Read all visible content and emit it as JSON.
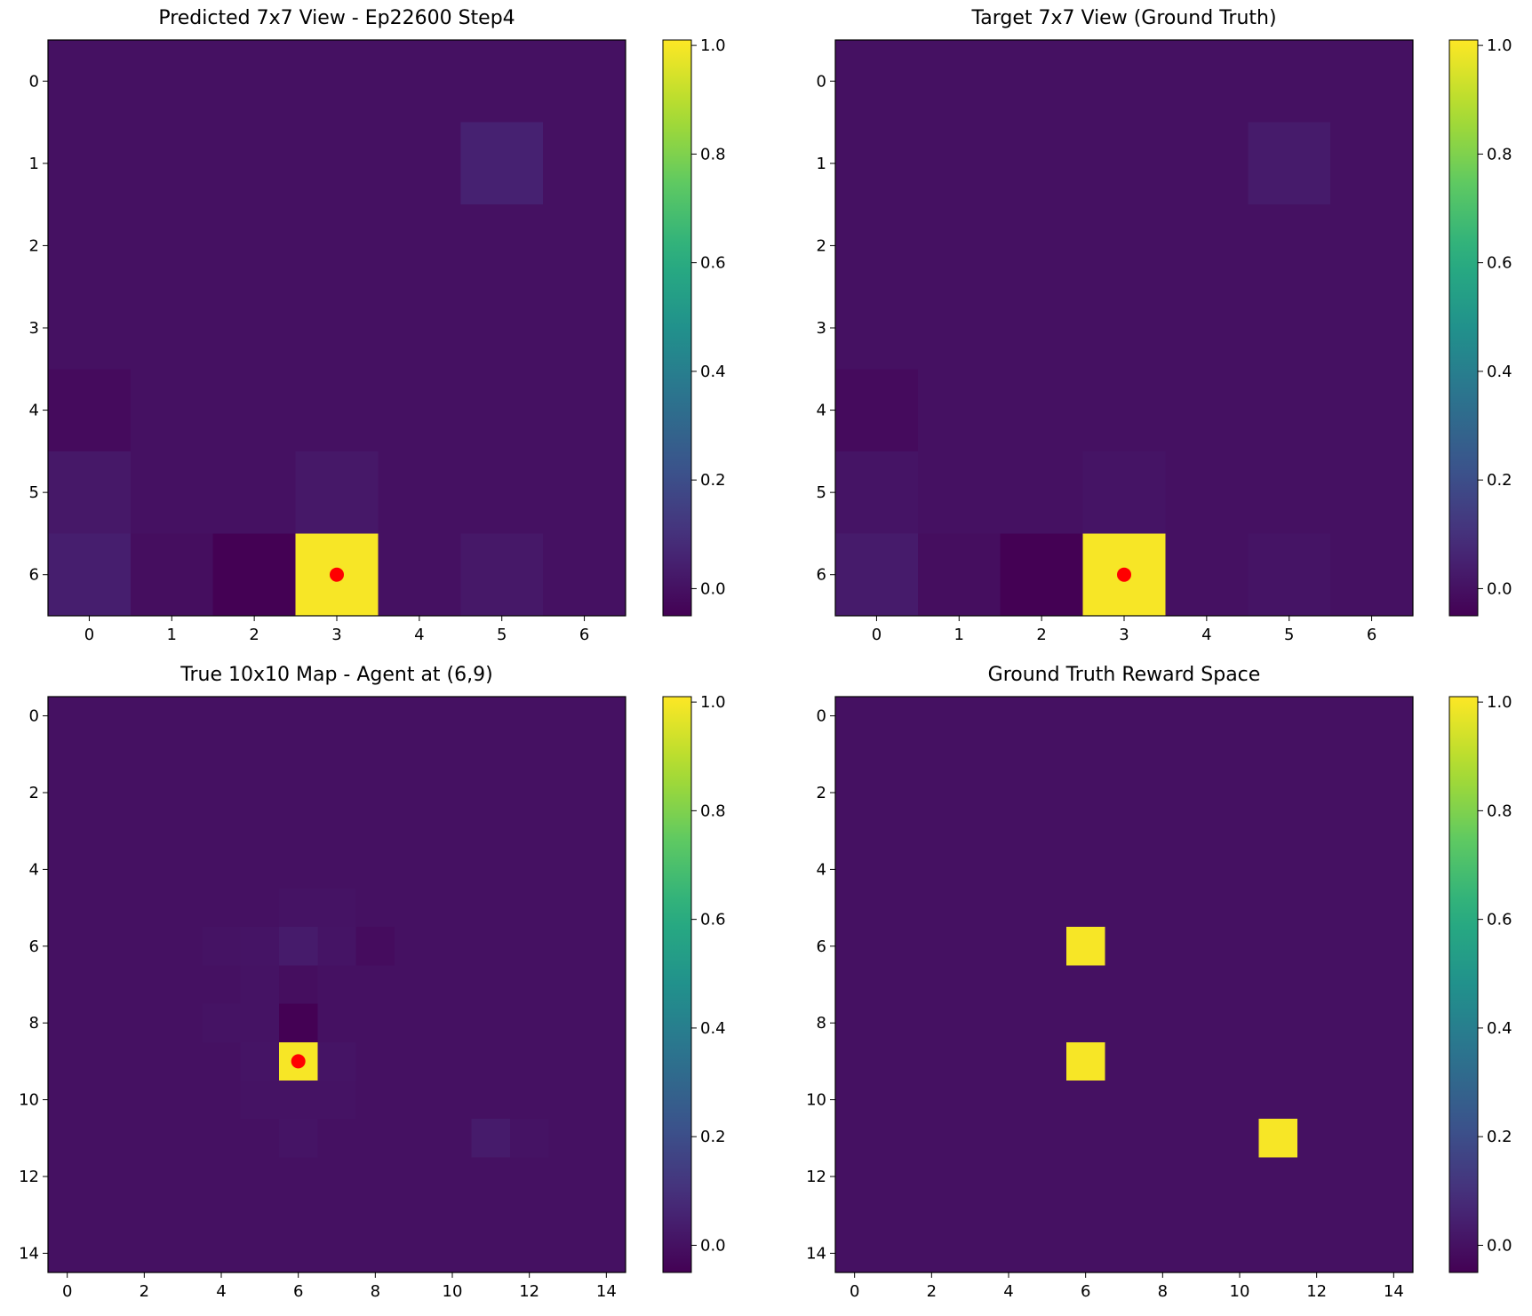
{
  "chart_data": [
    {
      "type": "heatmap",
      "title": "Predicted 7x7 View - Ep22600 Step4",
      "nrows": 7,
      "ncols": 7,
      "xticks": [
        0,
        1,
        2,
        3,
        4,
        5,
        6
      ],
      "yticks": [
        0,
        1,
        2,
        3,
        4,
        5,
        6
      ],
      "values": [
        [
          0,
          0,
          0,
          0,
          0,
          0,
          0
        ],
        [
          0,
          0,
          0,
          0,
          0,
          0.05,
          0
        ],
        [
          0,
          0,
          0,
          0,
          0,
          0,
          0
        ],
        [
          0,
          0,
          0,
          0,
          0,
          0,
          0
        ],
        [
          -0.02,
          0,
          0,
          0,
          0,
          0,
          0
        ],
        [
          0.02,
          0,
          0,
          0.02,
          0,
          0,
          0
        ],
        [
          0.04,
          -0.01,
          -0.05,
          1.0,
          0,
          0.02,
          0
        ]
      ],
      "marker": {
        "x": 3,
        "y": 6,
        "color": "#ff0000"
      },
      "colorbar": {
        "vmin": -0.05,
        "vmax": 1.01,
        "ticks": [
          0.0,
          0.2,
          0.4,
          0.6,
          0.8,
          1.0
        ],
        "tick_labels": [
          "0.0",
          "0.2",
          "0.4",
          "0.6",
          "0.8",
          "1.0"
        ]
      }
    },
    {
      "type": "heatmap",
      "title": "Target 7x7 View (Ground Truth)",
      "nrows": 7,
      "ncols": 7,
      "xticks": [
        0,
        1,
        2,
        3,
        4,
        5,
        6
      ],
      "yticks": [
        0,
        1,
        2,
        3,
        4,
        5,
        6
      ],
      "values": [
        [
          0,
          0,
          0,
          0,
          0,
          0,
          0
        ],
        [
          0,
          0,
          0,
          0,
          0,
          0.03,
          0
        ],
        [
          0,
          0,
          0,
          0,
          0,
          0,
          0
        ],
        [
          0,
          0,
          0,
          0,
          0,
          0,
          0
        ],
        [
          -0.02,
          0,
          0,
          0,
          0,
          0,
          0
        ],
        [
          0.01,
          0,
          0,
          0.01,
          0,
          0,
          0
        ],
        [
          0.03,
          -0.01,
          -0.05,
          1.0,
          0,
          0.01,
          0
        ]
      ],
      "marker": {
        "x": 3,
        "y": 6,
        "color": "#ff0000"
      },
      "colorbar": {
        "vmin": -0.05,
        "vmax": 1.01,
        "ticks": [
          0.0,
          0.2,
          0.4,
          0.6,
          0.8,
          1.0
        ],
        "tick_labels": [
          "0.0",
          "0.2",
          "0.4",
          "0.6",
          "0.8",
          "1.0"
        ]
      }
    },
    {
      "type": "heatmap",
      "title": "True 10x10 Map - Agent at (6,9)",
      "nrows": 15,
      "ncols": 15,
      "xticks": [
        0,
        2,
        4,
        6,
        8,
        10,
        12,
        14
      ],
      "yticks": [
        0,
        2,
        4,
        6,
        8,
        10,
        12,
        14
      ],
      "values": [
        [
          0,
          0,
          0,
          0,
          0,
          0,
          0,
          0,
          0,
          0,
          0,
          0,
          0,
          0,
          0
        ],
        [
          0,
          0,
          0,
          0,
          0,
          0,
          0,
          0,
          0,
          0,
          0,
          0,
          0,
          0,
          0
        ],
        [
          0,
          0,
          0,
          0,
          0,
          0,
          0,
          0,
          0,
          0,
          0,
          0,
          0,
          0,
          0
        ],
        [
          0,
          0,
          0,
          0,
          0,
          0,
          0,
          0,
          0,
          0,
          0,
          0,
          0,
          0,
          0
        ],
        [
          0,
          0,
          0,
          0,
          0,
          0,
          0,
          0,
          0,
          0,
          0,
          0,
          0,
          0,
          0
        ],
        [
          0,
          0,
          0,
          0,
          0,
          0,
          0.005,
          0.005,
          0,
          0,
          0,
          0,
          0,
          0,
          0
        ],
        [
          0,
          0,
          0,
          0,
          0.005,
          0.01,
          0.03,
          0.01,
          -0.015,
          0,
          0,
          0,
          0,
          0,
          0
        ],
        [
          0,
          0,
          0,
          0,
          0,
          0.005,
          -0.01,
          0,
          0,
          0,
          0,
          0,
          0,
          0,
          0
        ],
        [
          0,
          0,
          0,
          0,
          0.005,
          0.005,
          -0.05,
          0,
          0,
          0,
          0,
          0,
          0,
          0,
          0
        ],
        [
          0,
          0,
          0,
          0,
          0,
          0.01,
          1.0,
          0.01,
          0,
          0,
          0,
          0,
          0,
          0,
          0
        ],
        [
          0,
          0,
          0,
          0,
          0,
          0.005,
          0.005,
          0.005,
          0,
          0,
          0,
          0,
          0,
          0,
          0
        ],
        [
          0,
          0,
          0,
          0,
          0,
          0,
          0.01,
          0,
          0,
          0,
          0,
          0.03,
          0.005,
          0,
          0
        ],
        [
          0,
          0,
          0,
          0,
          0,
          0,
          0,
          0,
          0,
          0,
          0,
          0,
          0,
          0,
          0
        ],
        [
          0,
          0,
          0,
          0,
          0,
          0,
          0,
          0,
          0,
          0,
          0,
          0,
          0,
          0,
          0
        ],
        [
          0,
          0,
          0,
          0,
          0,
          0,
          0,
          0,
          0,
          0,
          0,
          0,
          0,
          0,
          0
        ]
      ],
      "marker": {
        "x": 6,
        "y": 9,
        "color": "#ff0000"
      },
      "colorbar": {
        "vmin": -0.05,
        "vmax": 1.01,
        "ticks": [
          0.0,
          0.2,
          0.4,
          0.6,
          0.8,
          1.0
        ],
        "tick_labels": [
          "0.0",
          "0.2",
          "0.4",
          "0.6",
          "0.8",
          "1.0"
        ]
      }
    },
    {
      "type": "heatmap",
      "title": "Ground Truth Reward Space",
      "nrows": 15,
      "ncols": 15,
      "xticks": [
        0,
        2,
        4,
        6,
        8,
        10,
        12,
        14
      ],
      "yticks": [
        0,
        2,
        4,
        6,
        8,
        10,
        12,
        14
      ],
      "values": [
        [
          0,
          0,
          0,
          0,
          0,
          0,
          0,
          0,
          0,
          0,
          0,
          0,
          0,
          0,
          0
        ],
        [
          0,
          0,
          0,
          0,
          0,
          0,
          0,
          0,
          0,
          0,
          0,
          0,
          0,
          0,
          0
        ],
        [
          0,
          0,
          0,
          0,
          0,
          0,
          0,
          0,
          0,
          0,
          0,
          0,
          0,
          0,
          0
        ],
        [
          0,
          0,
          0,
          0,
          0,
          0,
          0,
          0,
          0,
          0,
          0,
          0,
          0,
          0,
          0
        ],
        [
          0,
          0,
          0,
          0,
          0,
          0,
          0,
          0,
          0,
          0,
          0,
          0,
          0,
          0,
          0
        ],
        [
          0,
          0,
          0,
          0,
          0,
          0,
          0,
          0,
          0,
          0,
          0,
          0,
          0,
          0,
          0
        ],
        [
          0,
          0,
          0,
          0,
          0,
          0,
          1,
          0,
          0,
          0,
          0,
          0,
          0,
          0,
          0
        ],
        [
          0,
          0,
          0,
          0,
          0,
          0,
          0,
          0,
          0,
          0,
          0,
          0,
          0,
          0,
          0
        ],
        [
          0,
          0,
          0,
          0,
          0,
          0,
          0,
          0,
          0,
          0,
          0,
          0,
          0,
          0,
          0
        ],
        [
          0,
          0,
          0,
          0,
          0,
          0,
          1,
          0,
          0,
          0,
          0,
          0,
          0,
          0,
          0
        ],
        [
          0,
          0,
          0,
          0,
          0,
          0,
          0,
          0,
          0,
          0,
          0,
          0,
          0,
          0,
          0
        ],
        [
          0,
          0,
          0,
          0,
          0,
          0,
          0,
          0,
          0,
          0,
          0,
          1,
          0,
          0,
          0
        ],
        [
          0,
          0,
          0,
          0,
          0,
          0,
          0,
          0,
          0,
          0,
          0,
          0,
          0,
          0,
          0
        ],
        [
          0,
          0,
          0,
          0,
          0,
          0,
          0,
          0,
          0,
          0,
          0,
          0,
          0,
          0,
          0
        ],
        [
          0,
          0,
          0,
          0,
          0,
          0,
          0,
          0,
          0,
          0,
          0,
          0,
          0,
          0,
          0
        ]
      ],
      "colorbar": {
        "vmin": -0.05,
        "vmax": 1.01,
        "ticks": [
          0.0,
          0.2,
          0.4,
          0.6,
          0.8,
          1.0
        ],
        "tick_labels": [
          "0.0",
          "0.2",
          "0.4",
          "0.6",
          "0.8",
          "1.0"
        ]
      }
    }
  ]
}
